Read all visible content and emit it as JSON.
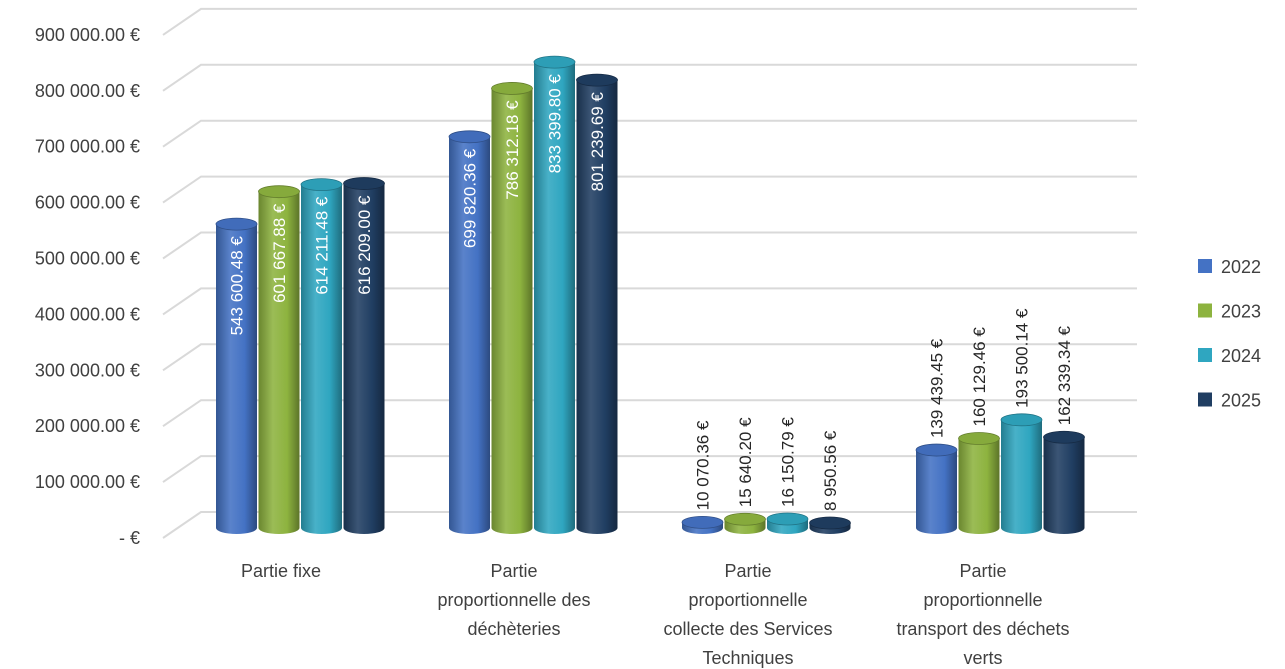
{
  "chart_data": {
    "type": "bar",
    "title": "",
    "xlabel": "",
    "ylabel": "",
    "ylim": [
      0,
      900000
    ],
    "y_ticks": [
      {
        "value": 0,
        "label": "-   €"
      },
      {
        "value": 100000,
        "label": "100 000.00 €"
      },
      {
        "value": 200000,
        "label": "200 000.00 €"
      },
      {
        "value": 300000,
        "label": "300 000.00 €"
      },
      {
        "value": 400000,
        "label": "400 000.00 €"
      },
      {
        "value": 500000,
        "label": "500 000.00 €"
      },
      {
        "value": 600000,
        "label": "600 000.00 €"
      },
      {
        "value": 700000,
        "label": "700 000.00 €"
      },
      {
        "value": 800000,
        "label": "800 000.00 €"
      },
      {
        "value": 900000,
        "label": "900 000.00 €"
      }
    ],
    "grid": true,
    "legend_position": "right",
    "categories": [
      [
        "Partie fixe"
      ],
      [
        "Partie",
        "proportionnelle des",
        "déchèteries"
      ],
      [
        "Partie",
        "proportionnelle",
        "collecte des Services",
        "Techniques"
      ],
      [
        "Partie",
        "proportionnelle",
        "transport des déchets",
        "verts"
      ]
    ],
    "series": [
      {
        "name": "2022",
        "color": "#4472c4",
        "values": [
          543600.48,
          699820.36,
          10070.36,
          139439.45
        ],
        "labels": [
          "543 600.48 €",
          "699 820.36 €",
          "10 070.36 €",
          "139 439.45 €"
        ]
      },
      {
        "name": "2023",
        "color": "#8db33f",
        "values": [
          601667.88,
          786312.18,
          15640.2,
          160129.46
        ],
        "labels": [
          "601 667.88 €",
          "786 312.18 €",
          "15 640.20 €",
          "160 129.46 €"
        ]
      },
      {
        "name": "2024",
        "color": "#2fa6c0",
        "values": [
          614211.48,
          833399.8,
          16150.79,
          193500.14
        ],
        "labels": [
          "614 211.48 €",
          "833 399.80 €",
          "16 150.79 €",
          "193 500.14 €"
        ]
      },
      {
        "name": "2025",
        "color": "#203e62",
        "values": [
          616209.0,
          801239.69,
          8950.56,
          162339.34
        ],
        "labels": [
          "616 209.00 €",
          "801 239.69 €",
          "8 950.56 €",
          "162 339.34 €"
        ]
      }
    ]
  }
}
